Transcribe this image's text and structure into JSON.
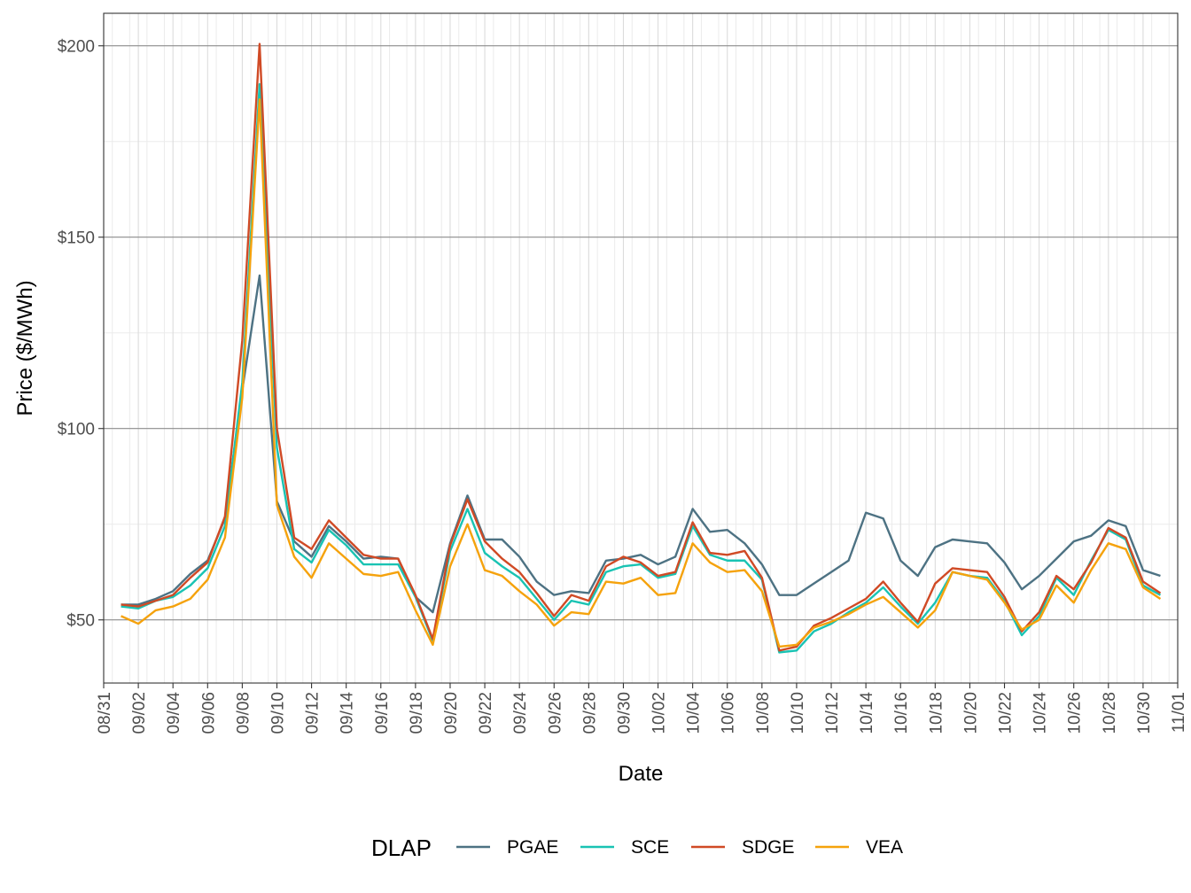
{
  "chart_data": {
    "type": "line",
    "xlabel": "Date",
    "ylabel": "Price ($/MWh)",
    "x_ticks": [
      "08/31",
      "09/02",
      "09/04",
      "09/06",
      "09/08",
      "09/10",
      "09/12",
      "09/14",
      "09/16",
      "09/18",
      "09/20",
      "09/22",
      "09/24",
      "09/26",
      "09/28",
      "09/30",
      "10/02",
      "10/04",
      "10/06",
      "10/08",
      "10/10",
      "10/12",
      "10/14",
      "10/16",
      "10/18",
      "10/20",
      "10/22",
      "10/24",
      "10/26",
      "10/28",
      "10/30",
      "11/01"
    ],
    "y_ticks": [
      "$50",
      "$100",
      "$150",
      "$200"
    ],
    "y_tick_values": [
      50,
      100,
      150,
      200
    ],
    "ylim": [
      33.5,
      208.5
    ],
    "xlim": [
      "08/31",
      "11/01"
    ],
    "grid": true,
    "legend": {
      "title": "DLAP",
      "position": "bottom"
    },
    "x": [
      "09/01",
      "09/02",
      "09/03",
      "09/04",
      "09/05",
      "09/06",
      "09/07",
      "09/08",
      "09/09",
      "09/10",
      "09/11",
      "09/12",
      "09/13",
      "09/14",
      "09/15",
      "09/16",
      "09/17",
      "09/18",
      "09/19",
      "09/20",
      "09/21",
      "09/22",
      "09/23",
      "09/24",
      "09/25",
      "09/26",
      "09/27",
      "09/28",
      "09/29",
      "09/30",
      "10/01",
      "10/02",
      "10/03",
      "10/04",
      "10/05",
      "10/06",
      "10/07",
      "10/08",
      "10/09",
      "10/10",
      "10/11",
      "10/12",
      "10/13",
      "10/14",
      "10/15",
      "10/16",
      "10/17",
      "10/18",
      "10/19",
      "10/20",
      "10/21",
      "10/22",
      "10/23",
      "10/24",
      "10/25",
      "10/26",
      "10/27",
      "10/28",
      "10/29",
      "10/30",
      "10/31"
    ],
    "series": [
      {
        "name": "PGAE",
        "color": "#4d7283",
        "values": [
          54,
          54,
          55.5,
          57.5,
          62,
          65.5,
          76.5,
          110,
          140,
          81,
          70.5,
          66.5,
          74.5,
          70.5,
          66,
          66.5,
          66,
          56,
          52,
          70,
          82.5,
          71,
          71,
          66.5,
          60,
          56.5,
          57.5,
          57,
          65.5,
          66,
          67,
          64.5,
          66.5,
          79,
          73,
          73.5,
          70,
          64.5,
          56.5,
          56.5,
          59.5,
          62.5,
          65.5,
          78,
          76.5,
          65.5,
          61.5,
          69,
          71,
          70.5,
          70,
          65,
          58,
          61.5,
          66,
          70.5,
          72,
          76,
          74.5,
          63,
          61.5
        ]
      },
      {
        "name": "SCE",
        "color": "#19c3b3",
        "values": [
          53.5,
          53,
          55,
          56,
          59,
          63.5,
          74.5,
          112,
          190,
          95,
          68.5,
          65,
          73.5,
          69.5,
          64.5,
          64.5,
          64.5,
          56,
          44.5,
          68,
          79,
          67.5,
          64,
          61,
          55.5,
          50,
          55,
          54,
          62.5,
          64,
          64.5,
          61,
          62,
          74.5,
          67,
          65.5,
          65.5,
          60.5,
          41.5,
          42,
          47,
          49,
          52,
          54.5,
          58.5,
          53.5,
          49,
          54.5,
          62.5,
          61.5,
          61,
          55,
          46,
          51,
          61,
          56.5,
          65.5,
          73.5,
          71,
          59,
          56.5
        ]
      },
      {
        "name": "SDGE",
        "color": "#d04a25",
        "values": [
          54,
          53.5,
          55,
          56.5,
          61,
          65,
          77,
          123,
          200.5,
          100,
          71.5,
          68.5,
          76,
          71.5,
          67,
          66,
          66,
          56.5,
          45,
          69.5,
          81.5,
          70.5,
          66,
          62.5,
          57,
          51,
          56.5,
          55,
          64,
          66.5,
          65,
          61.5,
          62.5,
          75.5,
          67.5,
          67,
          68,
          61,
          42,
          43,
          48.5,
          50.5,
          53,
          55.5,
          60,
          54.5,
          49.5,
          59.5,
          63.5,
          63,
          62.5,
          56,
          47,
          52,
          61.5,
          58,
          65,
          74,
          71.5,
          60,
          57
        ]
      },
      {
        "name": "VEA",
        "color": "#f5a20c",
        "values": [
          51,
          49,
          52.5,
          53.5,
          55.5,
          60.5,
          71.5,
          108,
          186,
          80,
          66.5,
          61,
          70,
          66,
          62,
          61.5,
          62.5,
          52.5,
          43.5,
          64,
          75,
          63,
          61.5,
          57.5,
          54,
          48.5,
          52,
          51.5,
          60,
          59.5,
          61,
          56.5,
          57,
          70,
          65,
          62.5,
          63,
          57.5,
          43,
          43.5,
          48,
          49.5,
          51.5,
          54,
          56,
          52,
          48,
          52.5,
          62.5,
          61.5,
          60.5,
          54.5,
          47.5,
          50,
          59,
          54.5,
          63,
          70,
          68.5,
          58.5,
          55.5
        ]
      }
    ]
  }
}
